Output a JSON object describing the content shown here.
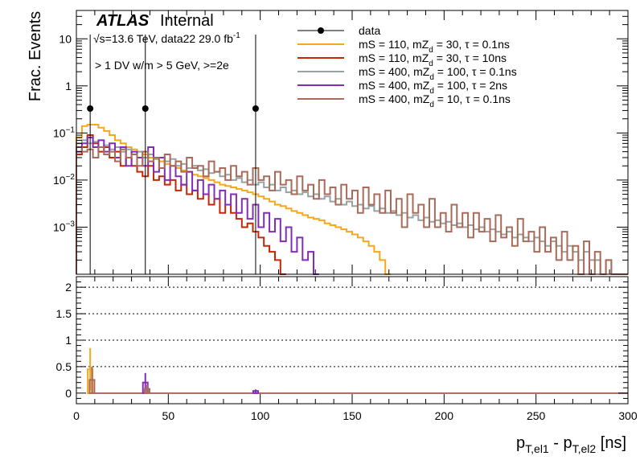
{
  "chart_data": {
    "type": "histogram",
    "atlas_label": "ATLAS",
    "atlas_suffix": "Internal",
    "energy_label": "√s=13.6 TeV, data22 29.0 fb",
    "energy_superscript": "-1",
    "selection_label": "> 1 DV w/m > 5 GeV, >=2e",
    "ylabel": "Frac. Events",
    "xlabel": "p",
    "xlabel_sub1": "T,el1",
    "xlabel_mid": " - p",
    "xlabel_sub2": "T,el2",
    "xlabel_unit": " [ns]",
    "xlim": [
      0,
      300
    ],
    "ylim_top": [
      0.0001,
      40
    ],
    "ylim_bottom": [
      -0.2,
      2.2
    ],
    "ylog_top": true,
    "x_ticks": [
      0,
      50,
      100,
      150,
      200,
      250,
      300
    ],
    "top_y_ticks": [
      {
        "v": 0.001,
        "base": "10",
        "exp": "−3"
      },
      {
        "v": 0.01,
        "base": "10",
        "exp": "−2"
      },
      {
        "v": 0.1,
        "base": "10",
        "exp": "−1"
      },
      {
        "v": 1,
        "base": "1",
        "exp": ""
      },
      {
        "v": 10,
        "base": "10",
        "exp": ""
      }
    ],
    "bottom_y_ticks": [
      {
        "v": 0,
        "label": "0"
      },
      {
        "v": 0.5,
        "label": "0.5"
      },
      {
        "v": 1,
        "label": "1"
      },
      {
        "v": 1.5,
        "label": "1.5"
      },
      {
        "v": 2,
        "label": "2"
      }
    ],
    "bottom_gridlines": [
      0.5,
      1,
      1.5,
      2
    ],
    "legend_position": "top-right",
    "legend": [
      {
        "key": "data",
        "text": "data",
        "color": "#000000",
        "kind": "marker"
      },
      {
        "key": "s1",
        "pre": "mS = 110, mZ",
        "sub": "d",
        "post": " = 30, τ = 0.1ns",
        "color": "#f5a81c",
        "kind": "line"
      },
      {
        "key": "s2",
        "pre": "mS = 110, mZ",
        "sub": "d",
        "post": " = 30, τ = 10ns",
        "color": "#c32706",
        "kind": "line"
      },
      {
        "key": "s3",
        "pre": "mS = 400, mZ",
        "sub": "d",
        "post": " = 100, τ = 0.1ns",
        "color": "#94a4a2",
        "kind": "line"
      },
      {
        "key": "s4",
        "pre": "mS = 400, mZ",
        "sub": "d",
        "post": " = 100, τ = 2ns",
        "color": "#832db6",
        "kind": "line"
      },
      {
        "key": "s5",
        "pre": "mS = 400, mZ",
        "sub": "d",
        "post": " = 10, τ = 0.1ns",
        "color": "#a96b59",
        "kind": "line"
      }
    ],
    "bin_width": 3,
    "data": {
      "name": "data",
      "points": [
        {
          "x": 7.5,
          "y": 0.33
        },
        {
          "x": 37.5,
          "y": 0.33
        },
        {
          "x": 97.5,
          "y": 0.33
        }
      ]
    },
    "series": [
      {
        "key": "s1",
        "color": "#f5a81c",
        "x_start": 0,
        "values": [
          0.08,
          0.14,
          0.15,
          0.15,
          0.13,
          0.11,
          0.09,
          0.07,
          0.06,
          0.05,
          0.045,
          0.04,
          0.035,
          0.03,
          0.028,
          0.025,
          0.022,
          0.02,
          0.018,
          0.016,
          0.015,
          0.013,
          0.012,
          0.011,
          0.01,
          0.009,
          0.008,
          0.0075,
          0.007,
          0.0065,
          0.006,
          0.0055,
          0.005,
          0.0045,
          0.004,
          0.0035,
          0.003,
          0.0028,
          0.0025,
          0.0022,
          0.002,
          0.0018,
          0.0016,
          0.0015,
          0.0014,
          0.0012,
          0.0011,
          0.001,
          0.0009,
          0.0008,
          0.0007,
          0.0006,
          0.0005,
          0.0004,
          0.0003,
          0.0002,
          0.0001
        ]
      },
      {
        "key": "s2",
        "color": "#c32706",
        "x_start": 0,
        "values": [
          0.035,
          0.05,
          0.09,
          0.06,
          0.04,
          0.05,
          0.03,
          0.04,
          0.02,
          0.03,
          0.02,
          0.015,
          0.012,
          0.02,
          0.01,
          0.012,
          0.008,
          0.01,
          0.006,
          0.008,
          0.005,
          0.006,
          0.004,
          0.005,
          0.003,
          0.004,
          0.002,
          0.003,
          0.002,
          0.0015,
          0.001,
          0.0012,
          0.0008,
          0.0006,
          0.0004,
          0.0003,
          0.0002,
          0.0001
        ]
      },
      {
        "key": "s3",
        "color": "#94a4a2",
        "x_start": 0,
        "values": [
          0.06,
          0.07,
          0.06,
          0.065,
          0.05,
          0.055,
          0.045,
          0.05,
          0.04,
          0.045,
          0.035,
          0.04,
          0.03,
          0.035,
          0.028,
          0.03,
          0.025,
          0.028,
          0.02,
          0.022,
          0.018,
          0.02,
          0.016,
          0.017,
          0.014,
          0.015,
          0.012,
          0.013,
          0.01,
          0.011,
          0.009,
          0.01,
          0.008,
          0.009,
          0.007,
          0.008,
          0.006,
          0.007,
          0.0055,
          0.006,
          0.005,
          0.0055,
          0.0045,
          0.005,
          0.004,
          0.0045,
          0.0035,
          0.004,
          0.003,
          0.0035,
          0.0028,
          0.003,
          0.0025,
          0.0028,
          0.0022,
          0.0025,
          0.002,
          0.0022,
          0.0018,
          0.002,
          0.0016,
          0.0018,
          0.0014,
          0.0016,
          0.0013,
          0.0014,
          0.0012,
          0.0013,
          0.0011,
          0.0012,
          0.001,
          0.0011,
          0.0009,
          0.001,
          0.0008,
          0.0009,
          0.0008,
          0.0007,
          0.0008,
          0.0006,
          0.0007,
          0.0006,
          0.0005,
          0.0006,
          0.0005,
          0.0004,
          0.0005,
          0.0004,
          0.0003,
          0.0004,
          0.0003,
          0.0002,
          0.0003,
          0.0002,
          0.0002,
          0.0001,
          0.0002,
          0.0001,
          0.0001,
          0.0001
        ]
      },
      {
        "key": "s4",
        "color": "#832db6",
        "x_start": 0,
        "values": [
          0.04,
          0.06,
          0.08,
          0.05,
          0.07,
          0.04,
          0.06,
          0.03,
          0.05,
          0.02,
          0.04,
          0.03,
          0.02,
          0.05,
          0.015,
          0.03,
          0.01,
          0.02,
          0.012,
          0.008,
          0.015,
          0.006,
          0.01,
          0.005,
          0.008,
          0.004,
          0.006,
          0.003,
          0.005,
          0.002,
          0.004,
          0.0015,
          0.003,
          0.001,
          0.002,
          0.0008,
          0.0015,
          0.0005,
          0.001,
          0.0003,
          0.0006,
          0.0002,
          0.0003,
          0.0001
        ]
      },
      {
        "key": "s5",
        "color": "#a96b59",
        "x_start": 0,
        "values": [
          0.05,
          0.04,
          0.045,
          0.03,
          0.05,
          0.035,
          0.04,
          0.025,
          0.045,
          0.03,
          0.035,
          0.02,
          0.04,
          0.025,
          0.03,
          0.018,
          0.035,
          0.02,
          0.025,
          0.015,
          0.03,
          0.018,
          0.02,
          0.012,
          0.025,
          0.015,
          0.018,
          0.01,
          0.02,
          0.012,
          0.015,
          0.008,
          0.018,
          0.01,
          0.012,
          0.006,
          0.015,
          0.008,
          0.01,
          0.005,
          0.012,
          0.006,
          0.008,
          0.004,
          0.01,
          0.005,
          0.007,
          0.003,
          0.008,
          0.004,
          0.006,
          0.002,
          0.007,
          0.003,
          0.005,
          0.002,
          0.006,
          0.002,
          0.004,
          0.001,
          0.005,
          0.002,
          0.003,
          0.001,
          0.004,
          0.001,
          0.002,
          0.0008,
          0.003,
          0.001,
          0.002,
          0.0006,
          0.002,
          0.0008,
          0.0015,
          0.0005,
          0.0018,
          0.0006,
          0.001,
          0.0004,
          0.0015,
          0.0005,
          0.0008,
          0.0003,
          0.001,
          0.0003,
          0.0006,
          0.0002,
          0.0008,
          0.0002,
          0.0004,
          0.0001,
          0.0005,
          0.0001,
          0.0003,
          0.0001,
          0.0002,
          0.0001,
          0.0001,
          0.0001
        ]
      }
    ],
    "ratio_points": [
      {
        "x": 7.5,
        "y": 0.45,
        "err": 0.4,
        "color": "#f5a81c"
      },
      {
        "x": 8.5,
        "y": 0.25,
        "err": 0.25,
        "color": "#a96b59"
      },
      {
        "x": 37.5,
        "y": 0.2,
        "err": 0.18,
        "color": "#832db6"
      },
      {
        "x": 38.5,
        "y": 0.08,
        "err": 0.08,
        "color": "#a96b59"
      },
      {
        "x": 97.5,
        "y": 0.04,
        "err": 0.03,
        "color": "#832db6"
      }
    ]
  }
}
